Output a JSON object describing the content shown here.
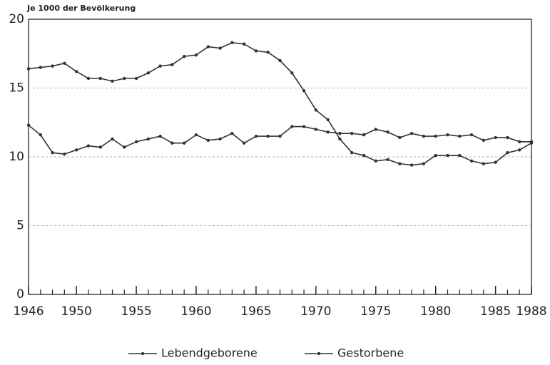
{
  "chart_data": {
    "type": "line",
    "y_label": "Je 1000 der Bevölkerung",
    "x": [
      1946,
      1947,
      1948,
      1949,
      1950,
      1951,
      1952,
      1953,
      1954,
      1955,
      1956,
      1957,
      1958,
      1959,
      1960,
      1961,
      1962,
      1963,
      1964,
      1965,
      1966,
      1967,
      1968,
      1969,
      1970,
      1971,
      1972,
      1973,
      1974,
      1975,
      1976,
      1977,
      1978,
      1979,
      1980,
      1981,
      1982,
      1983,
      1984,
      1985,
      1986,
      1987,
      1988
    ],
    "series": [
      {
        "name": "Lebendgeborene",
        "color": "#333333",
        "values": [
          16.4,
          16.5,
          16.6,
          16.8,
          16.2,
          15.7,
          15.7,
          15.5,
          15.7,
          15.7,
          16.1,
          16.6,
          16.7,
          17.3,
          17.4,
          18.0,
          17.9,
          18.3,
          18.2,
          17.7,
          17.6,
          17.0,
          16.1,
          14.8,
          13.4,
          12.7,
          11.3,
          10.3,
          10.1,
          9.7,
          9.8,
          9.5,
          9.4,
          9.5,
          10.1,
          10.1,
          10.1,
          9.7,
          9.5,
          9.6,
          10.3,
          10.5,
          11.0
        ]
      },
      {
        "name": "Gestorbene",
        "color": "#333333",
        "values": [
          12.3,
          11.6,
          10.3,
          10.2,
          10.5,
          10.8,
          10.7,
          11.3,
          10.7,
          11.1,
          11.3,
          11.5,
          11.0,
          11.0,
          11.6,
          11.2,
          11.3,
          11.7,
          11.0,
          11.5,
          11.5,
          11.5,
          12.2,
          12.2,
          12.0,
          11.8,
          11.7,
          11.7,
          11.6,
          12.0,
          11.8,
          11.4,
          11.7,
          11.5,
          11.5,
          11.6,
          11.5,
          11.6,
          11.2,
          11.4,
          11.4,
          11.1,
          11.1
        ]
      }
    ],
    "xlim": [
      1946,
      1988
    ],
    "xticks": [
      1946,
      1950,
      1955,
      1960,
      1965,
      1970,
      1975,
      1980,
      1985,
      1988
    ],
    "ylim": [
      0,
      20
    ],
    "yticks": [
      0,
      5,
      10,
      15,
      20
    ],
    "grid": true,
    "legend": "bottom"
  }
}
